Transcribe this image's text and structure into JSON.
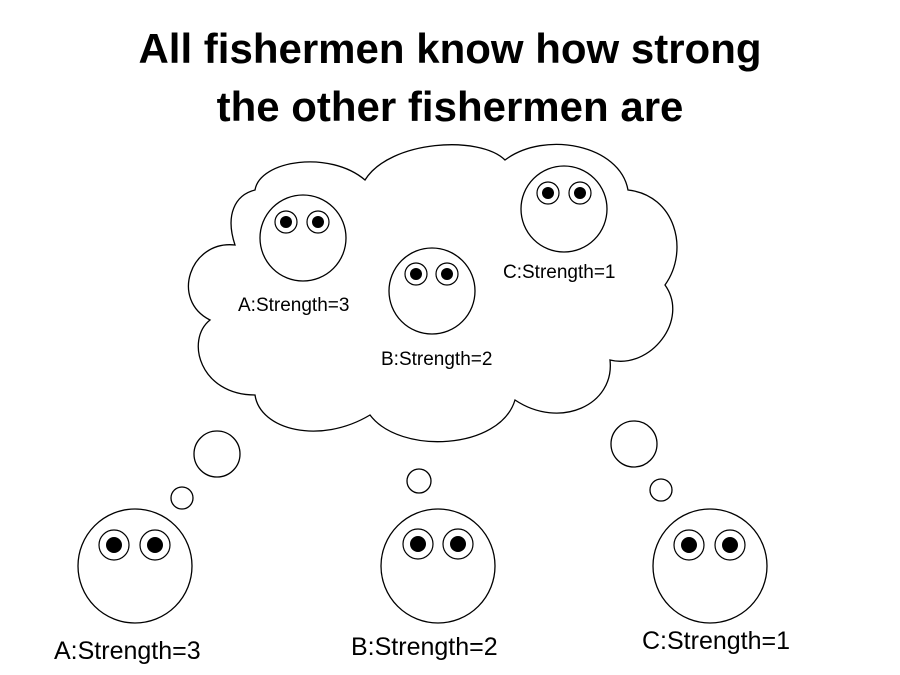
{
  "title": {
    "line1": "All fishermen know how strong",
    "line2": "the other fishermen are"
  },
  "thought": {
    "a_label": "A:Strength=3",
    "b_label": "B:Strength=2",
    "c_label": "C:Strength=1"
  },
  "fishermen": {
    "a_label": "A:Strength=3",
    "b_label": "B:Strength=2",
    "c_label": "C:Strength=1"
  }
}
